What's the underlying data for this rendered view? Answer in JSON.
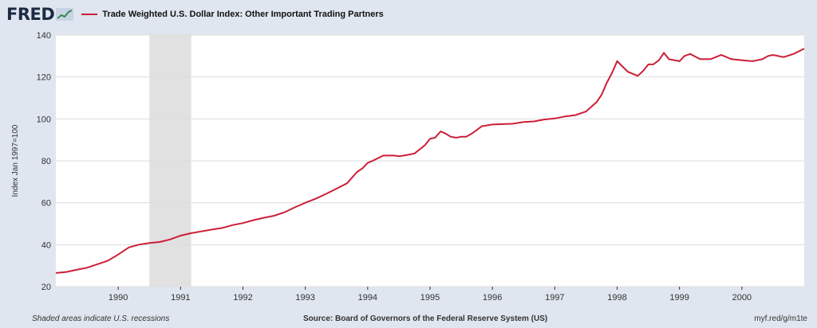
{
  "header": {
    "logo": "FRED",
    "legend_label": "Trade Weighted U.S. Dollar Index: Other Important Trading Partners"
  },
  "colors": {
    "series": "#cc1f36",
    "recession": "#e1e1e1",
    "grid": "#dddddd",
    "background": "#dfe6ef",
    "plot_bg": "#ffffff"
  },
  "footer": {
    "note": "Shaded areas indicate U.S. recessions",
    "source": "Source: Board of Governors of the Federal Reserve System (US)",
    "url": "myf.red/g/m1te"
  },
  "chart_data": {
    "type": "line",
    "ylabel": "Index Jan 1997=100",
    "ylim": [
      20,
      140
    ],
    "yticks": [
      20,
      40,
      60,
      80,
      100,
      120,
      140
    ],
    "xlim": [
      1989.0,
      2001.0
    ],
    "xticks": [
      1990,
      1991,
      1992,
      1993,
      1994,
      1995,
      1996,
      1997,
      1998,
      1999,
      2000
    ],
    "grid": true,
    "recessions": [
      [
        1990.5,
        1991.17
      ]
    ],
    "series": [
      {
        "name": "Trade Weighted U.S. Dollar Index: Other Important Trading Partners",
        "x": [
          1989.0,
          1989.17,
          1989.33,
          1989.5,
          1989.67,
          1989.83,
          1990.0,
          1990.17,
          1990.33,
          1990.5,
          1990.67,
          1990.83,
          1991.0,
          1991.17,
          1991.33,
          1991.5,
          1991.67,
          1991.83,
          1992.0,
          1992.17,
          1992.33,
          1992.5,
          1992.67,
          1992.83,
          1993.0,
          1993.17,
          1993.33,
          1993.5,
          1993.67,
          1993.83,
          1993.92,
          1994.0,
          1994.08,
          1994.25,
          1994.42,
          1994.5,
          1994.58,
          1994.75,
          1994.92,
          1995.0,
          1995.08,
          1995.17,
          1995.25,
          1995.33,
          1995.42,
          1995.5,
          1995.58,
          1995.67,
          1995.83,
          1996.0,
          1996.17,
          1996.33,
          1996.5,
          1996.67,
          1996.83,
          1997.0,
          1997.17,
          1997.33,
          1997.5,
          1997.67,
          1997.75,
          1997.83,
          1997.92,
          1998.0,
          1998.17,
          1998.33,
          1998.42,
          1998.5,
          1998.58,
          1998.67,
          1998.75,
          1998.83,
          1999.0,
          1999.08,
          1999.17,
          1999.33,
          1999.5,
          1999.67,
          1999.83,
          2000.0,
          2000.17,
          2000.33,
          2000.42,
          2000.5,
          2000.67,
          2000.83,
          2001.0
        ],
        "y": [
          26.5,
          27,
          28,
          29,
          30.7,
          32.3,
          35.3,
          38.7,
          40,
          40.8,
          41.3,
          42.5,
          44.3,
          45.5,
          46.3,
          47.2,
          48,
          49.3,
          50.3,
          51.7,
          52.8,
          53.8,
          55.5,
          57.8,
          60,
          62,
          64.2,
          66.7,
          69.3,
          74.7,
          76.5,
          79,
          80,
          82.5,
          82.5,
          82.2,
          82.5,
          83.5,
          87.5,
          90.5,
          91,
          94,
          93,
          91.5,
          91,
          91.5,
          91.5,
          93,
          96.5,
          97.3,
          97.5,
          97.7,
          98.5,
          98.8,
          99.7,
          100.2,
          101.2,
          101.8,
          103.5,
          108,
          111.5,
          117,
          122,
          127.5,
          122.5,
          120.5,
          123,
          126,
          126,
          128,
          131.5,
          128.5,
          127.5,
          130,
          131,
          128.5,
          128.5,
          130.5,
          128.5,
          128,
          127.5,
          128.5,
          130,
          130.5,
          129.5,
          131,
          133.5
        ]
      }
    ]
  }
}
